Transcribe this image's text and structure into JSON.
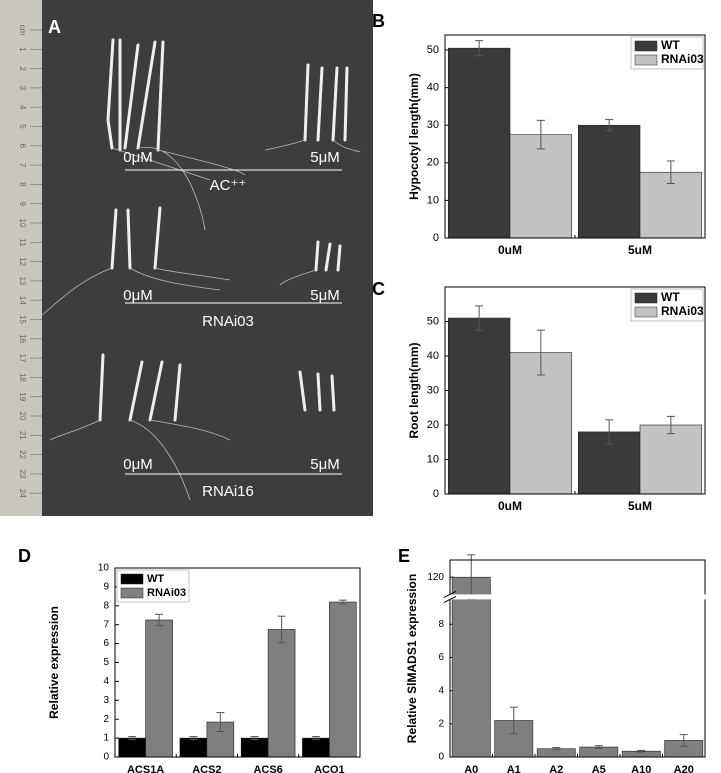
{
  "photo": {
    "panel": "A",
    "labels": [
      "0μM",
      "5μM",
      "AC⁺⁺",
      "0μM",
      "5μM",
      "RNAi03",
      "0μM",
      "5μM",
      "RNAi16"
    ],
    "ruler": [
      "cm",
      "1",
      "2",
      "3",
      "4",
      "5",
      "6",
      "7",
      "8",
      "9",
      "10",
      "11",
      "12",
      "13",
      "14",
      "15",
      "16",
      "17",
      "18",
      "19",
      "20",
      "21",
      "22",
      "23",
      "24"
    ]
  },
  "chart_data": [
    {
      "type": "bar",
      "panel": "B",
      "ylabel": "Hypocotyl length(mm)",
      "categories": [
        "0uM",
        "5uM"
      ],
      "series": [
        {
          "name": "WT",
          "color": "#3a3a3a",
          "values": [
            50.5,
            30
          ],
          "errors": [
            2,
            1.5
          ]
        },
        {
          "name": "RNAi03",
          "color": "#c2c2c2",
          "values": [
            27.5,
            17.5
          ],
          "errors": [
            3.8,
            3
          ]
        }
      ],
      "ylim": [
        0,
        54
      ],
      "yticks": [
        0,
        10,
        20,
        30,
        40,
        50
      ],
      "legend": "upper right"
    },
    {
      "type": "bar",
      "panel": "C",
      "ylabel": "Root length(mm)",
      "categories": [
        "0uM",
        "5uM"
      ],
      "series": [
        {
          "name": "WT",
          "color": "#3a3a3a",
          "values": [
            51,
            18
          ],
          "errors": [
            3.5,
            3.5
          ]
        },
        {
          "name": "RNAi03",
          "color": "#c2c2c2",
          "values": [
            41,
            20
          ],
          "errors": [
            6.5,
            2.5
          ]
        }
      ],
      "ylim": [
        0,
        60
      ],
      "yticks": [
        0,
        10,
        20,
        30,
        40,
        50
      ],
      "legend": "upper right"
    },
    {
      "type": "bar",
      "panel": "D",
      "ylabel": "Relative expression",
      "categories": [
        "ACS1A",
        "ACS2",
        "ACS6",
        "ACO1"
      ],
      "series": [
        {
          "name": "WT",
          "color": "#000000",
          "values": [
            1,
            1,
            1,
            1
          ],
          "errors": [
            0.08,
            0.08,
            0.08,
            0.08
          ]
        },
        {
          "name": "RNAi03",
          "color": "#7f7f7f",
          "values": [
            7.25,
            1.85,
            6.75,
            8.2
          ],
          "errors": [
            0.3,
            0.5,
            0.7,
            0.1
          ]
        }
      ],
      "ylim": [
        0,
        10
      ],
      "yticks": [
        0,
        1,
        2,
        3,
        4,
        5,
        6,
        7,
        8,
        9,
        10
      ],
      "legend": "upper left"
    },
    {
      "type": "bar",
      "panel": "E",
      "ylabel": "Relative SlMADS1 expression",
      "categories": [
        "A0",
        "A1",
        "A2",
        "A5",
        "A10",
        "A20"
      ],
      "series": [
        {
          "color": "#7f7f7f",
          "values": [
            120,
            2.2,
            0.5,
            0.6,
            0.35,
            1.0
          ],
          "errors": [
            13,
            0.8,
            0.07,
            0.08,
            0.05,
            0.35
          ]
        }
      ],
      "ylim": [
        0,
        130
      ],
      "axis_break": [
        9.5,
        110
      ],
      "yticks": [
        0,
        2,
        4,
        6,
        8,
        120
      ]
    }
  ]
}
